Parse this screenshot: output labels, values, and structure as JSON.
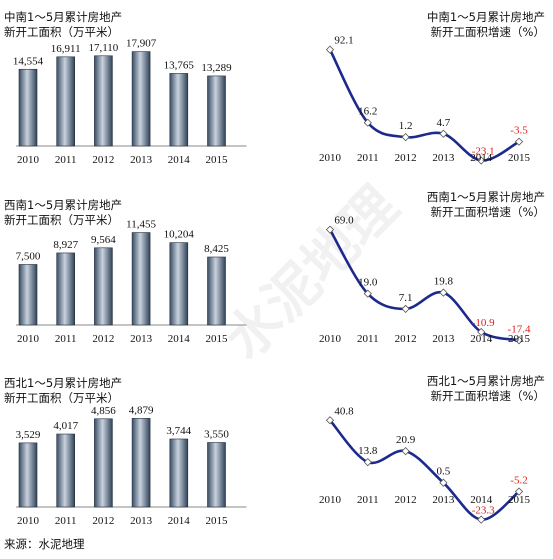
{
  "source": "来源：水泥地理",
  "watermark": "水泥地理",
  "colors": {
    "bar_light": "#c9d2de",
    "bar_dark": "#2f4257",
    "line": "#1b2a8c",
    "negative": "#e0201b"
  },
  "chart_data": [
    {
      "type": "bar",
      "title_lines": [
        "中南1～5月累计房地产",
        "新开工面积（万平米）"
      ],
      "categories": [
        "2010",
        "2011",
        "2012",
        "2013",
        "2014",
        "2015"
      ],
      "values": [
        14554,
        16911,
        17110,
        17907,
        13765,
        13289
      ],
      "labels": [
        "14,554",
        "16,911",
        "17,110",
        "17,907",
        "13,765",
        "13,289"
      ],
      "ylim": [
        0,
        22000
      ]
    },
    {
      "type": "line",
      "title_lines": [
        "中南1～5月累计房地产",
        "新开工面积增速（%）"
      ],
      "categories": [
        "2010",
        "2011",
        "2012",
        "2013",
        "2014",
        "2015"
      ],
      "values": [
        92.1,
        16.2,
        1.2,
        4.7,
        -23.1,
        -3.5
      ],
      "labels": [
        "92.1",
        "16.2",
        "1.2",
        "4.7",
        "-23.1",
        "-3.5"
      ],
      "ylim": [
        -35,
        100
      ]
    },
    {
      "type": "bar",
      "title_lines": [
        "西南1～5月累计房地产",
        "新开工面积（万平米）"
      ],
      "categories": [
        "2010",
        "2011",
        "2012",
        "2013",
        "2014",
        "2015"
      ],
      "values": [
        7500,
        8927,
        9564,
        11455,
        10204,
        8425
      ],
      "labels": [
        "7,500",
        "8,927",
        "9,564",
        "11,455",
        "10,204",
        "8,425"
      ],
      "ylim": [
        0,
        14000
      ]
    },
    {
      "type": "line",
      "title_lines": [
        "西南1～5月累计房地产",
        "新开工面积增速（%）"
      ],
      "categories": [
        "2010",
        "2011",
        "2012",
        "2013",
        "2014",
        "2015"
      ],
      "values": [
        69.0,
        19.0,
        7.1,
        19.8,
        -10.9,
        -17.4
      ],
      "labels": [
        "69.0",
        "19.0",
        "7.1",
        "19.8",
        "-10.9",
        "-17.4"
      ],
      "ylim": [
        -25,
        75
      ]
    },
    {
      "type": "bar",
      "title_lines": [
        "西北1～5月累计房地产",
        "新开工面积（万平米）"
      ],
      "categories": [
        "2010",
        "2011",
        "2012",
        "2013",
        "2014",
        "2015"
      ],
      "values": [
        3529,
        4017,
        4856,
        4879,
        3744,
        3550
      ],
      "labels": [
        "3,529",
        "4,017",
        "4,856",
        "4,879",
        "3,744",
        "3,550"
      ],
      "ylim": [
        0,
        6000
      ]
    },
    {
      "type": "line",
      "title_lines": [
        "西北1～5月累计房地产",
        "新开工面积增速（%）"
      ],
      "categories": [
        "2010",
        "2011",
        "2012",
        "2013",
        "2014",
        "2015"
      ],
      "values": [
        40.8,
        13.8,
        20.9,
        0.5,
        -23.3,
        -5.2
      ],
      "labels": [
        "40.8",
        "13.8",
        "20.9",
        "0.5",
        "-23.3",
        "-5.2"
      ],
      "ylim": [
        -30,
        50
      ]
    }
  ]
}
